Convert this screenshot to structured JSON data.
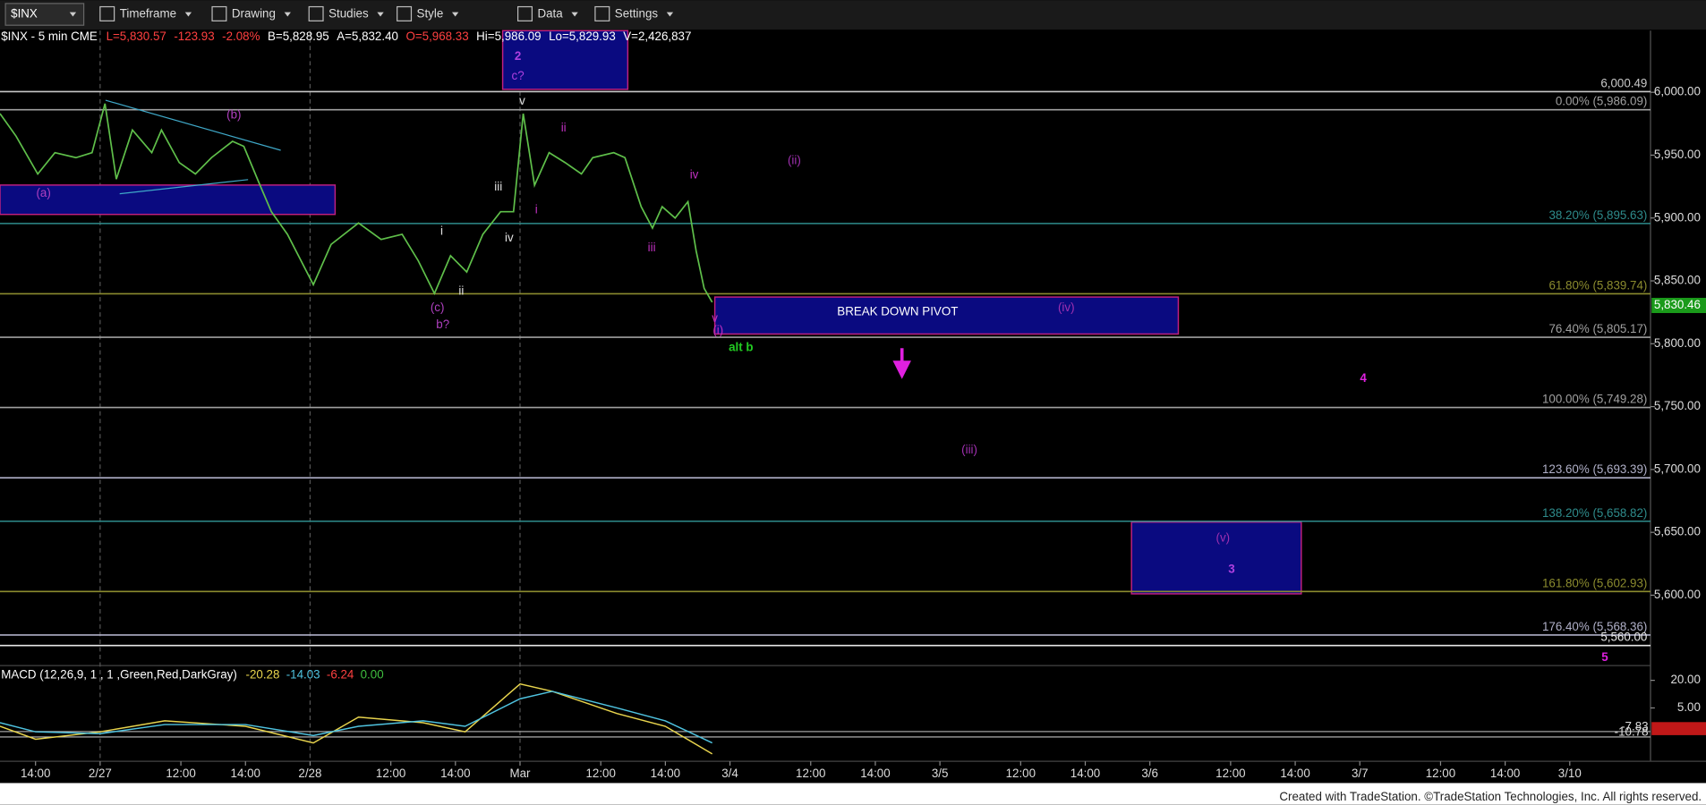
{
  "toolbar": {
    "symbol": "$INX",
    "items": [
      "Timeframe",
      "Drawing",
      "Studies",
      "Style",
      "Data",
      "Settings"
    ]
  },
  "footer": "Created with TradeStation. ©TradeStation Technologies, Inc. All rights reserved.",
  "chart_data": [
    {
      "type": "line",
      "title": "$INX - 5 min CME",
      "quote": [
        {
          "text": "L=5,830.57",
          "color": "#ff4040"
        },
        {
          "text": "-123.93",
          "color": "#ff4040"
        },
        {
          "text": "-2.08%",
          "color": "#ff4040"
        },
        {
          "text": "B=5,828.95",
          "color": "#ffffff"
        },
        {
          "text": "A=5,832.40",
          "color": "#ffffff"
        },
        {
          "text": "O=5,968.33",
          "color": "#ff4040"
        },
        {
          "text": "Hi=5,986.09",
          "color": "#ffffff"
        },
        {
          "text": "Lo=5,829.93",
          "color": "#ffffff"
        },
        {
          "text": "V=2,426,837",
          "color": "#ffffff"
        }
      ],
      "xlim": [
        -1.1,
        50.0
      ],
      "xticks": [
        {
          "value": 0,
          "label": "14:00"
        },
        {
          "value": 2,
          "label": "2/27"
        },
        {
          "value": 4.5,
          "label": "12:00"
        },
        {
          "value": 6.5,
          "label": "14:00"
        },
        {
          "value": 8.5,
          "label": "2/28"
        },
        {
          "value": 11,
          "label": "12:00"
        },
        {
          "value": 13,
          "label": "14:00"
        },
        {
          "value": 15,
          "label": "Mar"
        },
        {
          "value": 17.5,
          "label": "12:00"
        },
        {
          "value": 19.5,
          "label": "14:00"
        },
        {
          "value": 21.5,
          "label": "3/4"
        },
        {
          "value": 24,
          "label": "12:00"
        },
        {
          "value": 26,
          "label": "14:00"
        },
        {
          "value": 28,
          "label": "3/5"
        },
        {
          "value": 30.5,
          "label": "12:00"
        },
        {
          "value": 32.5,
          "label": "14:00"
        },
        {
          "value": 34.5,
          "label": "3/6"
        },
        {
          "value": 37,
          "label": "12:00"
        },
        {
          "value": 39,
          "label": "14:00"
        },
        {
          "value": 41,
          "label": "3/7"
        },
        {
          "value": 43.5,
          "label": "12:00"
        },
        {
          "value": 45.5,
          "label": "14:00"
        },
        {
          "value": 47.5,
          "label": "3/10"
        }
      ],
      "ylim": [
        5544,
        6049
      ],
      "yticks": [
        {
          "value": 5600,
          "label": "5,600.00"
        },
        {
          "value": 5650,
          "label": "5,650.00"
        },
        {
          "value": 5700,
          "label": "5,700.00"
        },
        {
          "value": 5750,
          "label": "5,750.00"
        },
        {
          "value": 5800,
          "label": "5,800.00"
        },
        {
          "value": 5850,
          "label": "5,850.00"
        },
        {
          "value": 5900,
          "label": "5,900.00"
        },
        {
          "value": 5950,
          "label": "5,950.00"
        },
        {
          "value": 6000,
          "label": "6,000.00"
        }
      ],
      "color": "#5fbf4a",
      "x": [
        -1.1,
        -0.6,
        0.07,
        0.6,
        1.25,
        1.75,
        2.15,
        2.5,
        3.0,
        3.6,
        3.9,
        4.45,
        4.95,
        5.45,
        6.1,
        6.45,
        6.95,
        7.3,
        7.8,
        8.6,
        9.15,
        10.0,
        10.7,
        11.35,
        11.85,
        12.35,
        12.85,
        13.35,
        13.85,
        14.4,
        14.8,
        15.1,
        15.45,
        15.9,
        16.4,
        16.9,
        17.25,
        17.9,
        18.25,
        18.75,
        19.1,
        19.4,
        19.8,
        20.2,
        20.45,
        20.7,
        20.95
      ],
      "values": [
        5983,
        5965,
        5935,
        5952,
        5948,
        5952,
        5991,
        5931,
        5970,
        5952,
        5970,
        5944,
        5935,
        5948,
        5961,
        5957,
        5926,
        5905,
        5887,
        5847,
        5879,
        5896,
        5883,
        5887,
        5866,
        5840,
        5870,
        5857,
        5887,
        5905,
        5905,
        5983,
        5926,
        5952,
        5944,
        5935,
        5948,
        5952,
        5948,
        5909,
        5892,
        5909,
        5900,
        5913,
        5874,
        5844,
        5833
      ],
      "last_price": {
        "value": 5830.46,
        "label": "5,830.46"
      },
      "levels": [
        {
          "value": 6000.49,
          "label": "6,000.49",
          "color": "#c8c8c8"
        },
        {
          "value": 5986.09,
          "label": "0.00% (5,986.09)",
          "color": "#a0a0a0"
        },
        {
          "value": 5895.63,
          "label": "38.20% (5,895.63)",
          "color": "#2e8b8b"
        },
        {
          "value": 5839.74,
          "label": "61.80% (5,839.74)",
          "color": "#8b8b2e"
        },
        {
          "value": 5805.17,
          "label": "76.40% (5,805.17)",
          "color": "#a0a0a0"
        },
        {
          "value": 5749.28,
          "label": "100.00% (5,749.28)",
          "color": "#a0a0a0"
        },
        {
          "value": 5693.39,
          "label": "123.60% (5,693.39)",
          "color": "#b0b0c8"
        },
        {
          "value": 5658.82,
          "label": "138.20% (5,658.82)",
          "color": "#2e8b8b"
        },
        {
          "value": 5602.93,
          "label": "161.80% (5,602.93)",
          "color": "#8b8b2e"
        },
        {
          "value": 5568.36,
          "label": "176.40% (5,568.36)",
          "color": "#b0b0c8"
        },
        {
          "value": 5560.0,
          "label": "5,560.00",
          "color": "#e8e8e8"
        }
      ],
      "pivot_label": "BREAK DOWN PIVOT",
      "annotations": [
        {
          "text": "(a)",
          "color": "#b040c0"
        },
        {
          "text": "(b)",
          "color": "#b040c0"
        },
        {
          "text": "(c)",
          "color": "#b040c0"
        },
        {
          "text": "b?",
          "color": "#b040c0"
        },
        {
          "text": "i",
          "color": "#e0e0e0"
        },
        {
          "text": "ii",
          "color": "#e0e0e0"
        },
        {
          "text": "iii",
          "color": "#e0e0e0"
        },
        {
          "text": "iv",
          "color": "#e0e0e0"
        },
        {
          "text": "v",
          "color": "#e0e0e0"
        },
        {
          "text": "i",
          "color": "#c030c0"
        },
        {
          "text": "ii",
          "color": "#c030c0"
        },
        {
          "text": "iii",
          "color": "#c030c0"
        },
        {
          "text": "iv",
          "color": "#c030c0"
        },
        {
          "text": "v",
          "color": "#c030c0"
        },
        {
          "text": "(i)",
          "color": "#c030c0"
        },
        {
          "text": "alt b",
          "color": "#22cc22"
        },
        {
          "text": "2",
          "color": "#b040e0"
        },
        {
          "text": "c?",
          "color": "#b040e0"
        },
        {
          "text": "(ii)",
          "color": "#a030b0"
        },
        {
          "text": "(iii)",
          "color": "#a030b0"
        },
        {
          "text": "(iv)",
          "color": "#a030b0"
        },
        {
          "text": "(v)",
          "color": "#a030b0"
        },
        {
          "text": "3",
          "color": "#b040e0"
        },
        {
          "text": "4",
          "color": "#e020e0"
        },
        {
          "text": "5",
          "color": "#e020e0"
        }
      ]
    },
    {
      "type": "line",
      "title": "MACD (12,26,9, 1 , 1 ,Green,Red,DarkGray)",
      "readings": [
        {
          "value": -20.28,
          "color": "#e8d44d"
        },
        {
          "value": -14.03,
          "color": "#4fc3e0"
        },
        {
          "value": -6.24,
          "color": "#ff4040"
        },
        {
          "value": {
            "value": 0,
            "label": "0.00"
          },
          "color": "#3fbf3f"
        }
      ],
      "ylim": [
        -24,
        28
      ],
      "yticks": [
        {
          "value": 20,
          "label": "20.00"
        },
        {
          "value": 5,
          "label": "5.00"
        }
      ],
      "levels": [
        {
          "value": -7.83,
          "color": "#a0a0a0"
        },
        {
          "value": -10.78,
          "color": "#c0c0c0"
        }
      ],
      "series": [
        {
          "color": "#e8d44d",
          "x": [
            -1.1,
            0,
            2,
            4,
            6.5,
            8.6,
            10,
            12,
            13.3,
            15,
            16,
            18,
            19.5,
            20.95
          ],
          "values": [
            -5,
            -12,
            -8,
            -2,
            -5,
            -14,
            0,
            -3,
            -8,
            18,
            14,
            2,
            -5,
            -20
          ]
        },
        {
          "color": "#4fc3e0",
          "x": [
            -1.1,
            0,
            2,
            4,
            6.5,
            8.6,
            10,
            12,
            13.3,
            15,
            16,
            18,
            19.5,
            20.95
          ],
          "values": [
            -3,
            -8,
            -9,
            -4,
            -4,
            -10,
            -5,
            -2,
            -5,
            10,
            14,
            5,
            -2,
            -14
          ]
        }
      ]
    }
  ]
}
